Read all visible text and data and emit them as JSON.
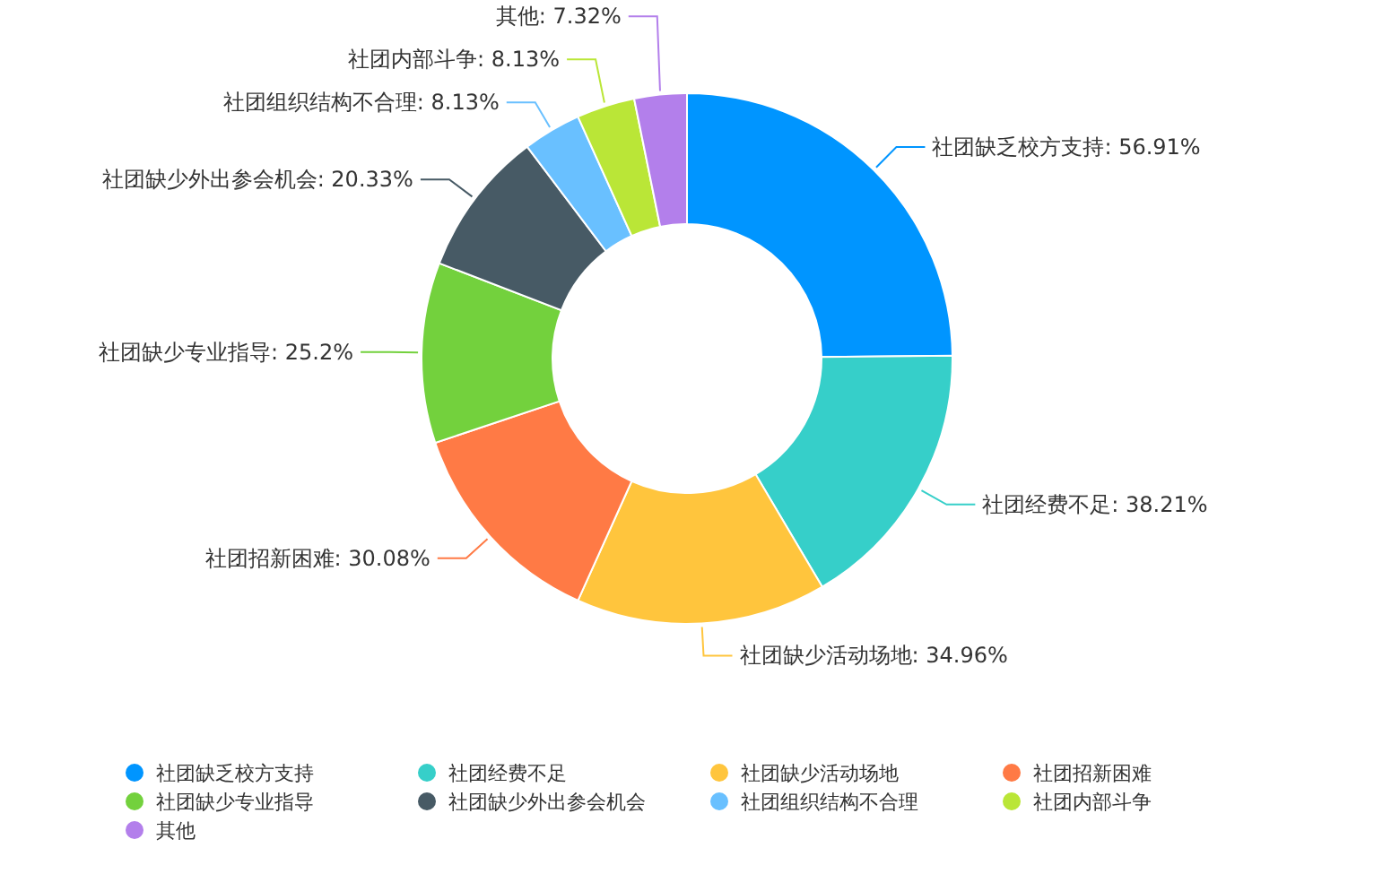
{
  "chart_data": {
    "type": "donut",
    "categories": [
      "社团缺乏校方支持",
      "社团经费不足",
      "社团缺少活动场地",
      "社团招新困难",
      "社团缺少专业指导",
      "社团缺少外出参会机会",
      "社团组织结构不合理",
      "社团内部斗争",
      "其他"
    ],
    "values": [
      56.91,
      38.21,
      34.96,
      30.08,
      25.2,
      20.33,
      8.13,
      8.13,
      7.32
    ],
    "colors": [
      "#0095ff",
      "#36cfc9",
      "#ffc53d",
      "#ff7a45",
      "#73d13d",
      "#475a65",
      "#69c0ff",
      "#bae637",
      "#b37feb"
    ],
    "value_labels": [
      "社团缺乏校方支持: 56.91%",
      "社团经费不足: 38.21%",
      "社团缺少活动场地: 34.96%",
      "社团招新困难: 30.08%",
      "社团缺少专业指导: 25.2%",
      "社团缺少外出参会机会: 20.33%",
      "社团组织结构不合理: 8.13%",
      "社团内部斗争: 8.13%",
      "其他: 7.32%"
    ],
    "legend": "bottom"
  }
}
